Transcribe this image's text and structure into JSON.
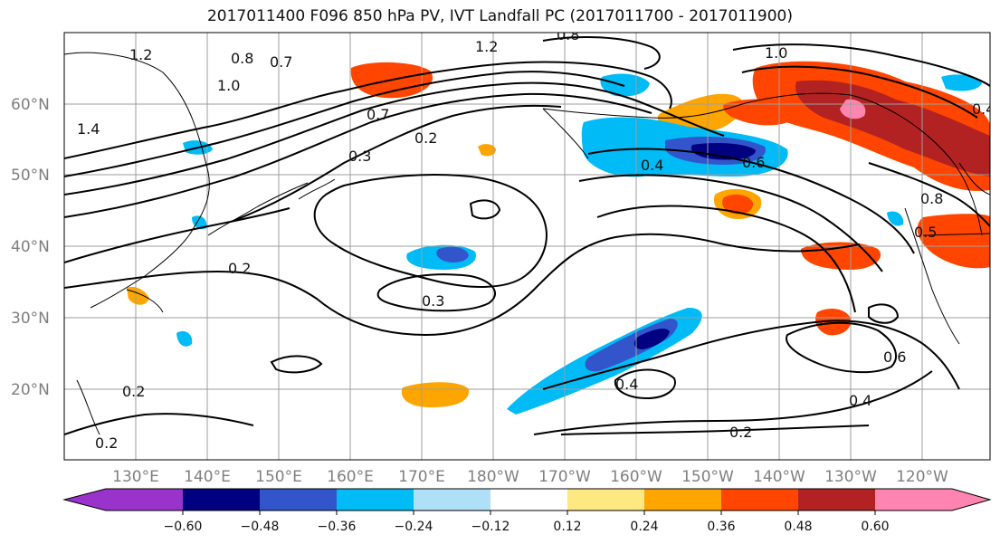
{
  "title": "2017011400 F096 850 hPa PV, IVT Landfall PC (2017011700 - 2017011900)",
  "colors": {
    "neg_060": "#9933cc",
    "neg_048": "#000080",
    "neg_036": "#3355cc",
    "neg_024": "#00bbf5",
    "neg_012": "#b0e0f8",
    "zero": "#ffffff",
    "pos_012": "#fde882",
    "pos_024": "#ffa500",
    "pos_036": "#ff4500",
    "pos_048": "#b22222",
    "pos_060": "#ff85b0",
    "contour": "#000000",
    "grid": "#9e9e9e"
  },
  "map": {
    "lat_labels": [
      "60°N",
      "50°N",
      "40°N",
      "30°N",
      "20°N"
    ],
    "lon_labels": [
      "130°E",
      "140°E",
      "150°E",
      "160°E",
      "170°E",
      "180°W",
      "170°W",
      "160°W",
      "150°W",
      "140°W",
      "130°W",
      "120°W"
    ],
    "contour_labels": [
      "1.2",
      "0.8",
      "0.7",
      "1.0",
      "1.4",
      "1.2",
      "0.8",
      "0.7",
      "0.2",
      "0.3",
      "0.4",
      "0.6",
      "0.2",
      "0.3",
      "0.2",
      "0.2",
      "0.4",
      "0.2",
      "0.6",
      "0.4",
      "1.0",
      "0.8",
      "0.5",
      "0.4"
    ]
  },
  "colorbar": {
    "tick_labels": [
      "−0.60",
      "−0.48",
      "−0.36",
      "−0.24",
      "−0.12",
      "0.12",
      "0.24",
      "0.36",
      "0.48",
      "0.60"
    ]
  }
}
